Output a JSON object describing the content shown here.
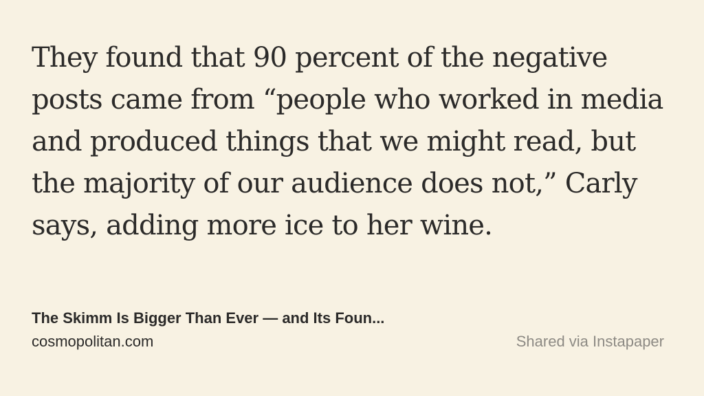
{
  "quote": {
    "lines": [
      "They found that 90 percent of the negative",
      "posts came from “people who worked in media",
      "and produced things that we might read, but",
      "the majority of our audience does not,” Carly",
      "says, adding more ice to her wine."
    ]
  },
  "article": {
    "title": "The Skimm Is Bigger Than Ever — and Its Foun...",
    "source": "cosmopolitan.com"
  },
  "attribution": "Shared via Instapaper",
  "colors": {
    "background": "#f8f2e3",
    "text": "#2b2a29",
    "muted": "#8d8a84"
  }
}
